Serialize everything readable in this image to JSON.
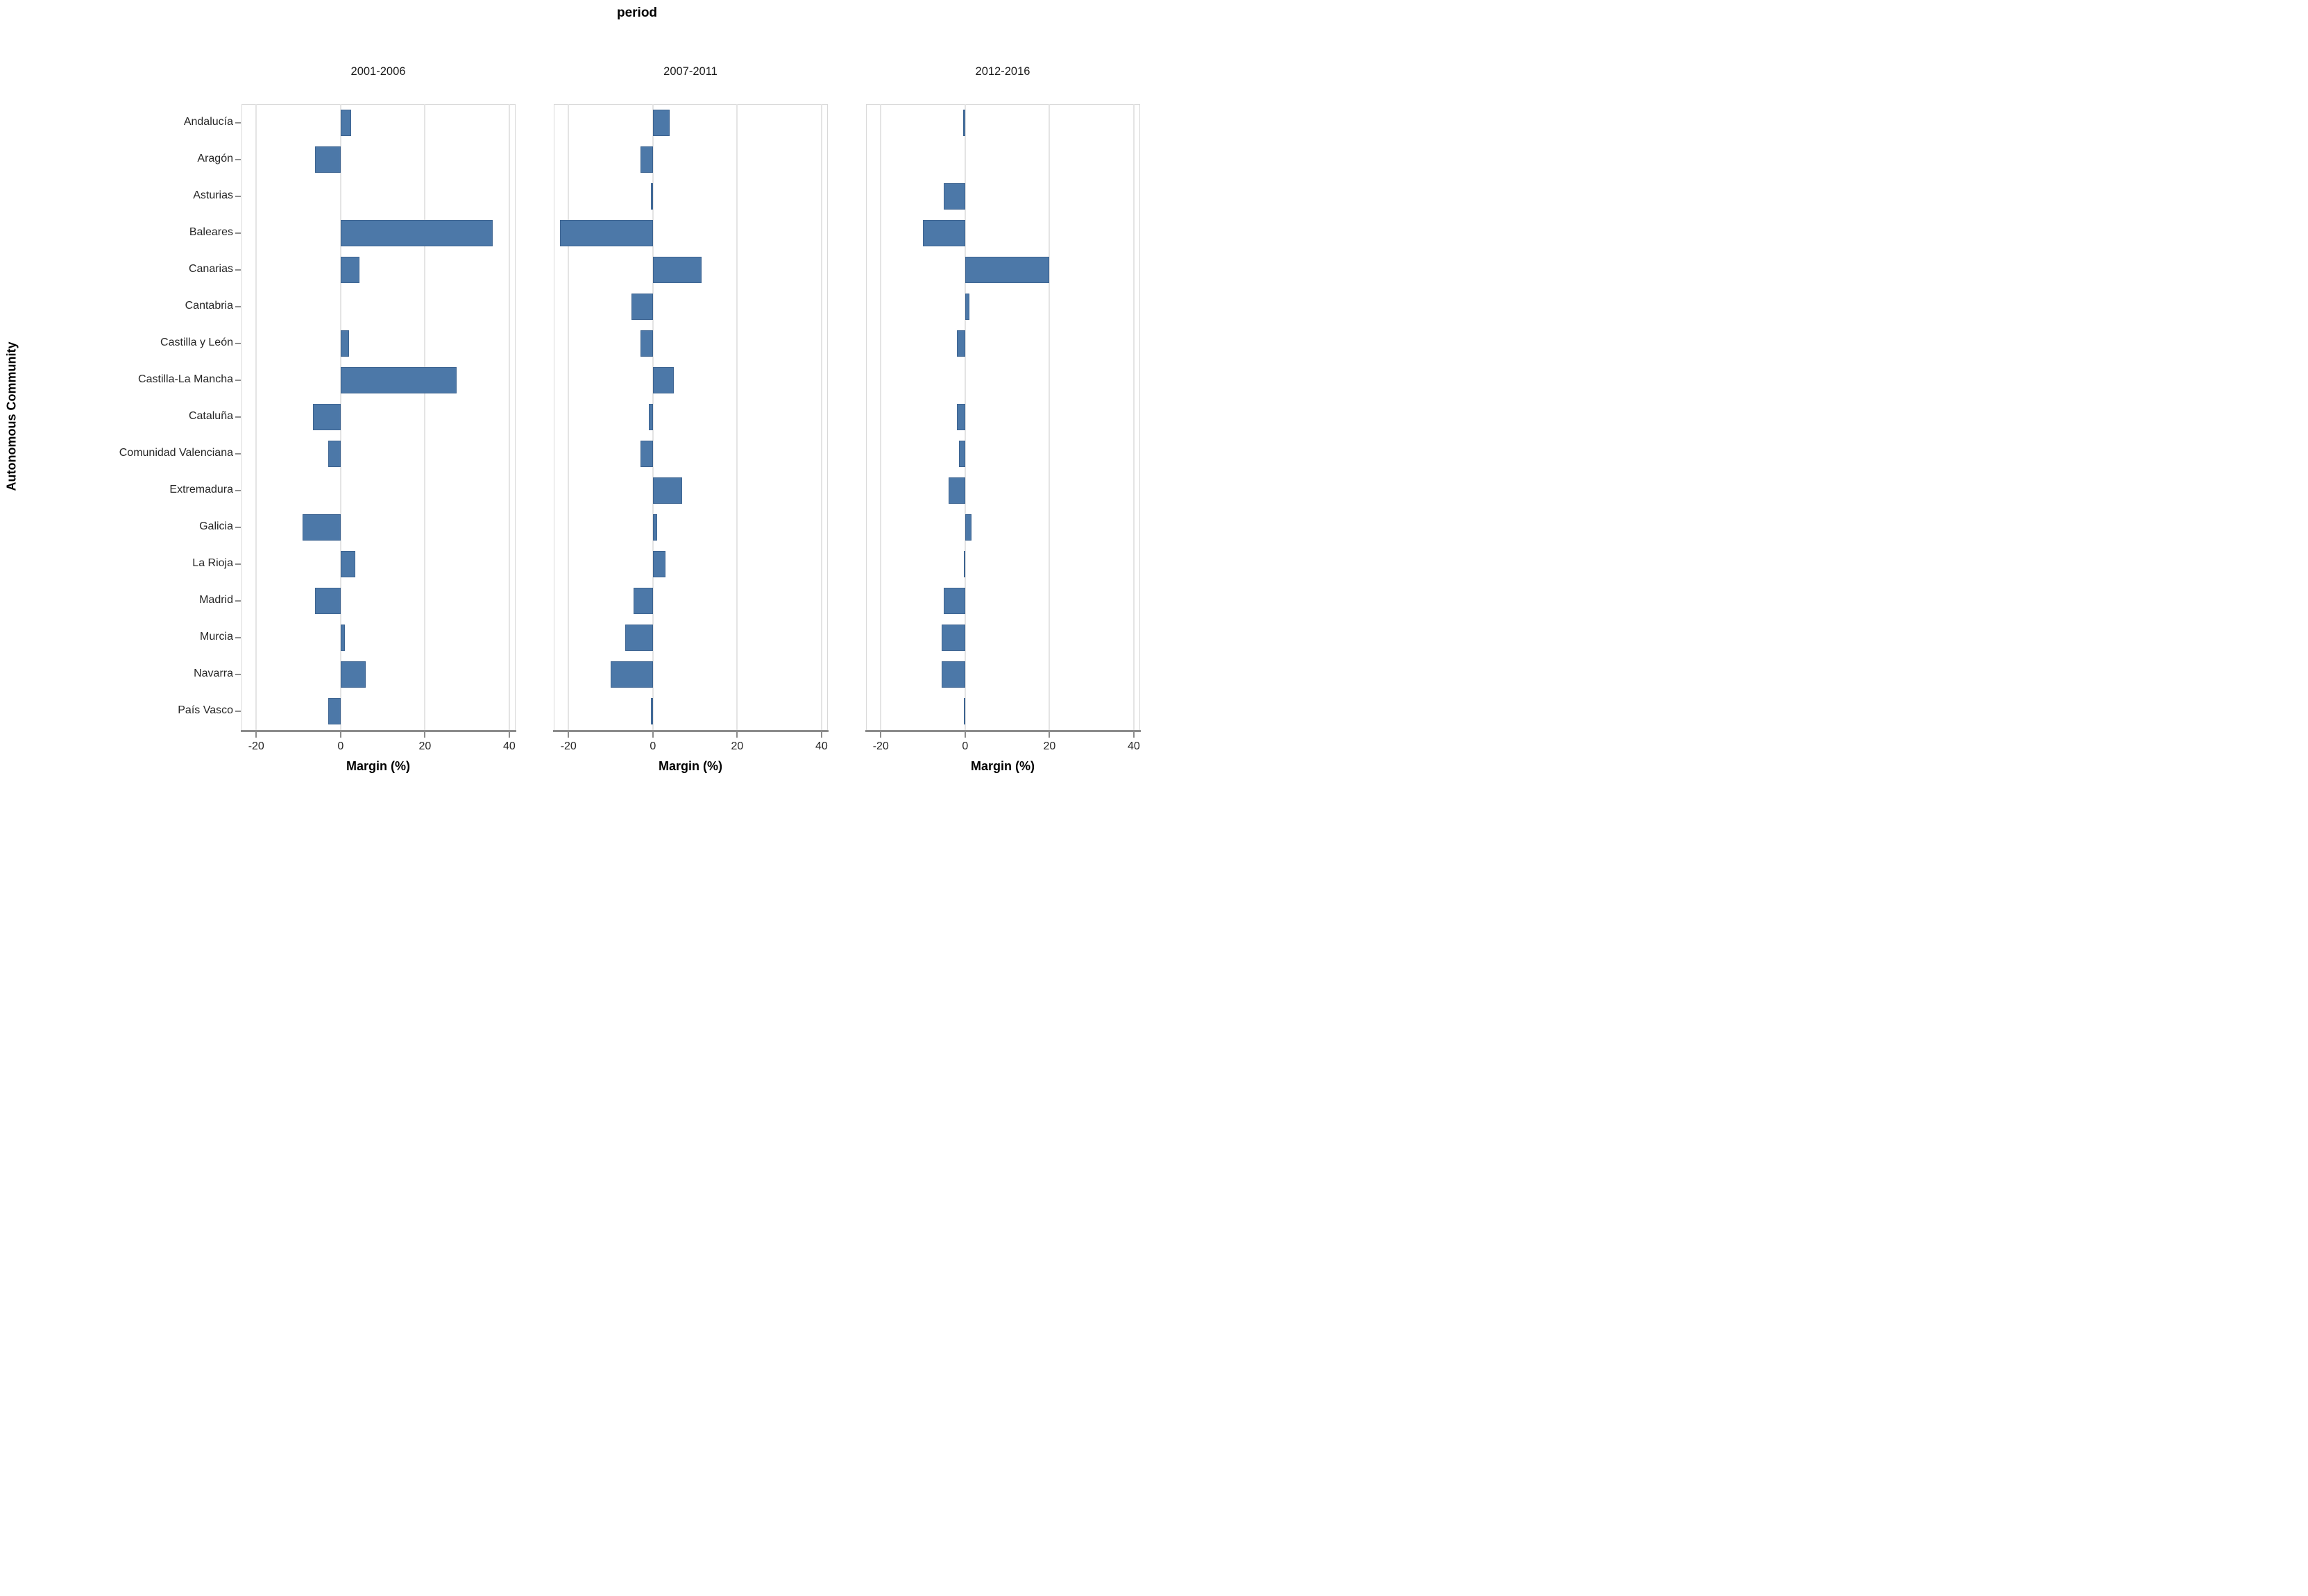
{
  "title": "period",
  "y_axis_title": "Autonomous Community",
  "x_axis_title": "Margin (%)",
  "colors": {
    "bar": "#4C78A8",
    "gridline": "#E4E4E4",
    "axis_line": "#8C8C8C",
    "panel_border": "#D9D9D9",
    "text": "#262626"
  },
  "chart_data": {
    "type": "bar",
    "orientation": "horizontal",
    "title": "period",
    "xlabel": "Margin (%)",
    "ylabel": "Autonomous Community",
    "facet_field": "period",
    "facets": [
      "2001-2006",
      "2007-2011",
      "2012-2016"
    ],
    "categories": [
      "Andalucía",
      "Aragón",
      "Asturias",
      "Baleares",
      "Canarias",
      "Cantabria",
      "Castilla y León",
      "Castilla-La Mancha",
      "Cataluña",
      "Comunidad Valenciana",
      "Extremadura",
      "Galicia",
      "La Rioja",
      "Madrid",
      "Murcia",
      "Navarra",
      "País Vasco"
    ],
    "series": [
      {
        "name": "2001-2006",
        "values": [
          2.5,
          -6,
          0,
          36,
          4.5,
          0,
          2,
          27.5,
          -6.5,
          -3,
          0,
          -9,
          3.5,
          -6,
          1,
          6,
          -3
        ]
      },
      {
        "name": "2007-2011",
        "values": [
          4,
          -3,
          -0.5,
          -22,
          11.5,
          -5,
          -3,
          5,
          -1,
          -3,
          7,
          1,
          3,
          -4.5,
          -6.5,
          -10,
          -0.5
        ]
      },
      {
        "name": "2012-2016",
        "values": [
          -0.5,
          0,
          -5,
          -10,
          20,
          1,
          -2,
          0,
          -2,
          -1.5,
          -4,
          1.5,
          -0.2,
          -5,
          -5.5,
          -5.5,
          -0.3
        ]
      }
    ],
    "x_ticks": [
      -20,
      0,
      20,
      40
    ],
    "xlim": [
      -23.5,
      41.5
    ],
    "grid": true,
    "legend": "none",
    "bar_color": "#4C78A8"
  }
}
